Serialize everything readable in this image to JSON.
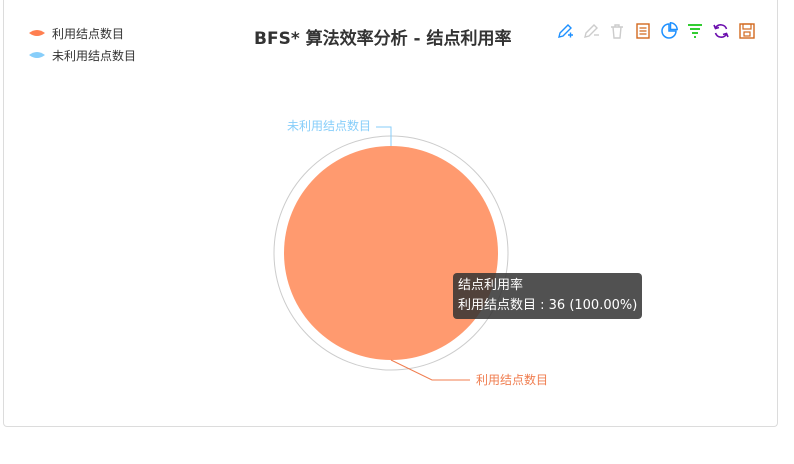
{
  "chart_data": {
    "type": "pie",
    "title": "BFS* 算法效率分析 - 结点利用率",
    "series_name": "结点利用率",
    "slices": [
      {
        "label": "利用结点数目",
        "value": 36,
        "percent": 100.0,
        "color": "#ff9a6f"
      },
      {
        "label": "未利用结点数目",
        "value": 0,
        "percent": 0.0,
        "color": "#87cefa"
      }
    ],
    "legend_position": "top-left"
  },
  "legend": {
    "items": [
      {
        "label": "利用结点数目",
        "color": "#ff7f50"
      },
      {
        "label": "未利用结点数目",
        "color": "#87cefa"
      }
    ]
  },
  "toolbox": {
    "icons": [
      "mark-icon",
      "mark-undo-icon",
      "mark-clear-icon",
      "data-view-icon",
      "pie-icon",
      "funnel-icon",
      "restore-icon",
      "save-image-icon"
    ]
  },
  "tooltip": {
    "series": "结点利用率",
    "line": "利用结点数目 : 36 (100.00%)"
  },
  "labels": {
    "used": "利用结点数目",
    "unused": "未利用结点数目"
  },
  "colors": {
    "used_slice": "#ff9a6f",
    "used_label": "#f07d4f",
    "unused_label": "#87cefa",
    "outer_ring": "#cccccc"
  }
}
